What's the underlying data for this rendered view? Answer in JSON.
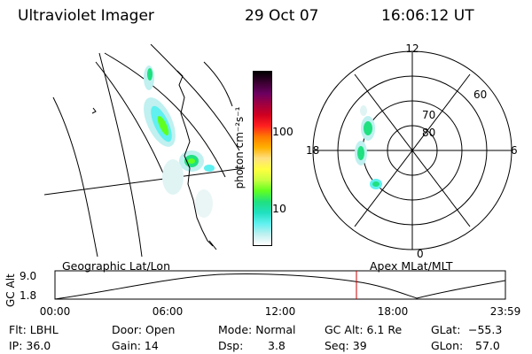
{
  "header": {
    "title": "Ultraviolet Imager",
    "date": "29 Oct 07",
    "time": "16:06:12 UT"
  },
  "colorbar": {
    "label": "photon cm⁻²s⁻¹",
    "ticks": [
      "100",
      "10"
    ],
    "colors": [
      "#000000",
      "#3a0030",
      "#6a0060",
      "#a00040",
      "#d00020",
      "#ff2020",
      "#ff7a00",
      "#ffb000",
      "#ffe080",
      "#ffff40",
      "#c8ff40",
      "#60ff20",
      "#20e080",
      "#20e0c0",
      "#60f0f0",
      "#c0f0f0",
      "#ffffff"
    ]
  },
  "map_left": {
    "label": "Geographic Lat/Lon"
  },
  "polar": {
    "label": "Apex MLat/MLT",
    "lat_labels": [
      "80",
      "70",
      "60"
    ],
    "mlt_labels": [
      "12",
      "18",
      "6",
      "0"
    ]
  },
  "timeline": {
    "axis_label": "GC Alt",
    "y_ticks": [
      "9.0",
      "1.8"
    ],
    "x_ticks": [
      "00:00",
      "06:00",
      "12:00",
      "18:00",
      "23:59"
    ],
    "current_time_color": "#cc0000"
  },
  "status": {
    "flt": "Flt: LBHL",
    "ip": "IP: 36.0",
    "door": "Door: Open",
    "gain": "Gain: 14",
    "mode": "Mode: Normal",
    "dsp": "Dsp:",
    "dsp_value": "3.8",
    "gc_alt": "GC Alt: 6.1 Re",
    "seq": "Seq: 39",
    "glat": "GLat:",
    "glat_value": "−55.3",
    "glon": "GLon:",
    "glon_value": "57.0"
  }
}
